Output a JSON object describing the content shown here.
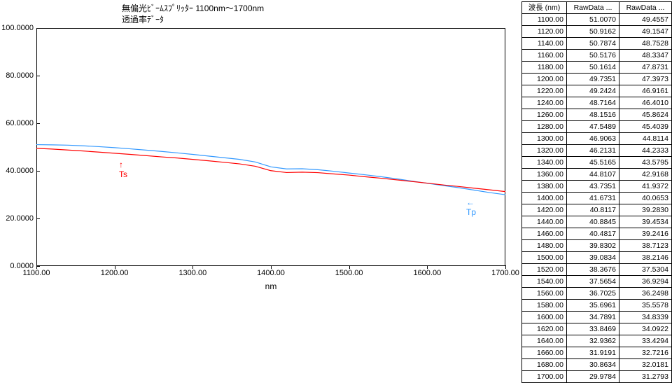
{
  "chart": {
    "title_line1": "無偏光ﾋﾞｰﾑｽﾌﾟﾘｯﾀｰ 1100nm～1700nm",
    "title_line2": "透過率ﾃﾞｰﾀ",
    "title_fontsize": 12,
    "xlabel": "nm",
    "label_fontsize": 12,
    "xlim": [
      1100,
      1700
    ],
    "ylim": [
      0,
      100
    ],
    "xticks": [
      1100,
      1200,
      1300,
      1400,
      1500,
      1600,
      1700
    ],
    "xtick_labels": [
      "1100.00",
      "1200.00",
      "1300.00",
      "1400.00",
      "1500.00",
      "1600.00",
      "1700.00"
    ],
    "yticks": [
      0,
      20,
      40,
      60,
      80,
      100
    ],
    "ytick_labels": [
      "0.0000",
      "20.0000",
      "40.0000",
      "60.0000",
      "80.0000",
      "100.0000"
    ],
    "tick_fontsize": 11,
    "background_color": "#ffffff",
    "border_color": "#000000",
    "line_width": 1.2,
    "series": {
      "ts": {
        "label": "Ts",
        "color": "#ff0000",
        "x": [
          1100,
          1120,
          1140,
          1160,
          1180,
          1200,
          1220,
          1240,
          1260,
          1280,
          1300,
          1320,
          1340,
          1360,
          1380,
          1400,
          1420,
          1440,
          1460,
          1480,
          1500,
          1520,
          1540,
          1560,
          1580,
          1600,
          1620,
          1640,
          1660,
          1680,
          1700
        ],
        "y": [
          49.4557,
          49.1547,
          48.7528,
          48.3347,
          47.8731,
          47.3973,
          46.9161,
          46.401,
          45.8624,
          45.4039,
          44.8114,
          44.2333,
          43.5795,
          42.9168,
          41.9372,
          40.0653,
          39.283,
          39.4534,
          39.2416,
          38.7123,
          38.2146,
          37.5304,
          36.9294,
          36.2498,
          35.5578,
          34.8339,
          34.0922,
          33.4294,
          32.7216,
          32.0181,
          31.2793
        ]
      },
      "tp": {
        "label": "Tp",
        "color": "#3399ff",
        "x": [
          1100,
          1120,
          1140,
          1160,
          1180,
          1200,
          1220,
          1240,
          1260,
          1280,
          1300,
          1320,
          1340,
          1360,
          1380,
          1400,
          1420,
          1440,
          1460,
          1480,
          1500,
          1520,
          1540,
          1560,
          1580,
          1600,
          1620,
          1640,
          1660,
          1680,
          1700
        ],
        "y": [
          51.007,
          50.9162,
          50.7874,
          50.5176,
          50.1614,
          49.7351,
          49.2424,
          48.7164,
          48.1516,
          47.5489,
          46.9063,
          46.2131,
          45.5165,
          44.8107,
          43.7351,
          41.6731,
          40.8117,
          40.8845,
          40.4817,
          39.8302,
          39.0834,
          38.3676,
          37.5654,
          36.7025,
          35.6961,
          34.7891,
          33.8469,
          32.9362,
          31.9191,
          30.8634,
          29.9784
        ]
      }
    },
    "annotation_ts": {
      "text": "Ts",
      "color": "#ff0000",
      "arrow": "↑"
    },
    "annotation_tp": {
      "text": "Tp",
      "color": "#3399ff",
      "arrow": "←"
    }
  },
  "table": {
    "columns": [
      "波長 (nm)",
      "RawData ...",
      "RawData ..."
    ],
    "col_align": [
      "right",
      "right",
      "right"
    ],
    "header_fontsize": 10.5,
    "cell_fontsize": 10.5,
    "border_color": "#000000",
    "rows": [
      [
        "1100.00",
        "51.0070",
        "49.4557"
      ],
      [
        "1120.00",
        "50.9162",
        "49.1547"
      ],
      [
        "1140.00",
        "50.7874",
        "48.7528"
      ],
      [
        "1160.00",
        "50.5176",
        "48.3347"
      ],
      [
        "1180.00",
        "50.1614",
        "47.8731"
      ],
      [
        "1200.00",
        "49.7351",
        "47.3973"
      ],
      [
        "1220.00",
        "49.2424",
        "46.9161"
      ],
      [
        "1240.00",
        "48.7164",
        "46.4010"
      ],
      [
        "1260.00",
        "48.1516",
        "45.8624"
      ],
      [
        "1280.00",
        "47.5489",
        "45.4039"
      ],
      [
        "1300.00",
        "46.9063",
        "44.8114"
      ],
      [
        "1320.00",
        "46.2131",
        "44.2333"
      ],
      [
        "1340.00",
        "45.5165",
        "43.5795"
      ],
      [
        "1360.00",
        "44.8107",
        "42.9168"
      ],
      [
        "1380.00",
        "43.7351",
        "41.9372"
      ],
      [
        "1400.00",
        "41.6731",
        "40.0653"
      ],
      [
        "1420.00",
        "40.8117",
        "39.2830"
      ],
      [
        "1440.00",
        "40.8845",
        "39.4534"
      ],
      [
        "1460.00",
        "40.4817",
        "39.2416"
      ],
      [
        "1480.00",
        "39.8302",
        "38.7123"
      ],
      [
        "1500.00",
        "39.0834",
        "38.2146"
      ],
      [
        "1520.00",
        "38.3676",
        "37.5304"
      ],
      [
        "1540.00",
        "37.5654",
        "36.9294"
      ],
      [
        "1560.00",
        "36.7025",
        "36.2498"
      ],
      [
        "1580.00",
        "35.6961",
        "35.5578"
      ],
      [
        "1600.00",
        "34.7891",
        "34.8339"
      ],
      [
        "1620.00",
        "33.8469",
        "34.0922"
      ],
      [
        "1640.00",
        "32.9362",
        "33.4294"
      ],
      [
        "1660.00",
        "31.9191",
        "32.7216"
      ],
      [
        "1680.00",
        "30.8634",
        "32.0181"
      ],
      [
        "1700.00",
        "29.9784",
        "31.2793"
      ]
    ]
  }
}
